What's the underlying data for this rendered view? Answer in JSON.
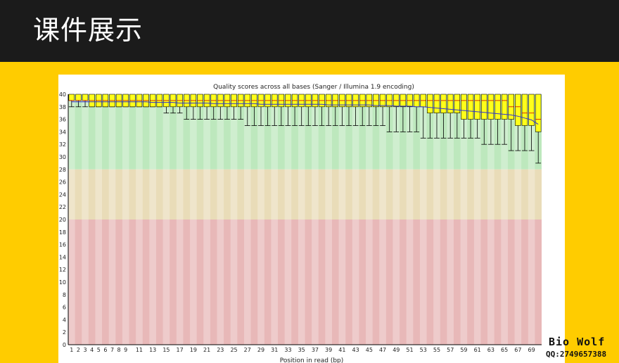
{
  "header": {
    "title": "课件展示"
  },
  "watermark": {
    "name": "Bio Wolf",
    "contact": "QQ:2749657388"
  },
  "colors": {
    "page_background": "#ffcc00",
    "header_background": "#1b1b1b",
    "zone_good": "#bde8bd",
    "zone_warn": "#e9dcb8",
    "zone_bad": "#e8b8b8",
    "box_fill": "#ffff1a",
    "mean_line": "#3333cc"
  },
  "chart_data": {
    "type": "boxplot",
    "title": "Quality scores across all bases (Sanger / Illumina 1.9 encoding)",
    "xlabel": "Position in read (bp)",
    "ylabel": "",
    "ylim": [
      0,
      40
    ],
    "yticks": [
      0,
      2,
      4,
      6,
      8,
      10,
      12,
      14,
      16,
      18,
      20,
      22,
      24,
      26,
      28,
      30,
      32,
      34,
      36,
      38,
      40
    ],
    "xtick_labels": [
      "1",
      "2",
      "3",
      "4",
      "5",
      "6",
      "7",
      "8",
      "9",
      "11",
      "13",
      "15",
      "17",
      "19",
      "21",
      "23",
      "25",
      "27",
      "29",
      "31",
      "33",
      "35",
      "37",
      "39",
      "41",
      "43",
      "45",
      "47",
      "49",
      "51",
      "53",
      "55",
      "57",
      "59",
      "61",
      "63",
      "65",
      "67",
      "69"
    ],
    "zones": [
      {
        "name": "good",
        "from": 28,
        "to": 40
      },
      {
        "name": "warning",
        "from": 20,
        "to": 28
      },
      {
        "name": "poor",
        "from": 0,
        "to": 20
      }
    ],
    "positions": [
      1,
      2,
      3,
      4,
      5,
      6,
      7,
      8,
      9,
      10,
      11,
      12,
      13,
      14,
      15,
      16,
      17,
      18,
      19,
      20,
      21,
      22,
      23,
      24,
      25,
      26,
      27,
      28,
      29,
      30,
      31,
      32,
      33,
      34,
      35,
      36,
      37,
      38,
      39,
      40,
      41,
      42,
      43,
      44,
      45,
      46,
      47,
      48,
      49,
      50,
      51,
      52,
      53,
      54,
      55,
      56,
      57,
      58,
      59,
      60,
      61,
      62,
      63,
      64,
      65,
      66,
      67,
      68,
      69,
      70
    ],
    "upper_quartile": [
      40,
      40,
      40,
      40,
      40,
      40,
      40,
      40,
      40,
      40,
      40,
      40,
      40,
      40,
      40,
      40,
      40,
      40,
      40,
      40,
      40,
      40,
      40,
      40,
      40,
      40,
      40,
      40,
      40,
      40,
      40,
      40,
      40,
      40,
      40,
      40,
      40,
      40,
      40,
      40,
      40,
      40,
      40,
      40,
      40,
      40,
      40,
      40,
      40,
      40,
      40,
      40,
      40,
      40,
      40,
      40,
      40,
      40,
      40,
      40,
      40,
      40,
      40,
      40,
      40,
      40,
      40,
      40,
      40,
      40
    ],
    "median": [
      39,
      39,
      39,
      39,
      39,
      39,
      39,
      39,
      39,
      39,
      39,
      39,
      39,
      39,
      39,
      39,
      39,
      39,
      39,
      39,
      39,
      39,
      39,
      39,
      39,
      39,
      39,
      39,
      39,
      39,
      39,
      39,
      39,
      39,
      39,
      39,
      39,
      39,
      39,
      39,
      39,
      39,
      39,
      39,
      39,
      39,
      39,
      39,
      39,
      39,
      39,
      39,
      39,
      39,
      39,
      39,
      39,
      39,
      39,
      39,
      39,
      39,
      39,
      39,
      39,
      38,
      38,
      37,
      37,
      36
    ],
    "lower_quartile": [
      39,
      39,
      39,
      38,
      38,
      38,
      38,
      38,
      38,
      38,
      38,
      38,
      38,
      38,
      38,
      38,
      38,
      38,
      38,
      38,
      38,
      38,
      38,
      38,
      38,
      38,
      38,
      38,
      38,
      38,
      38,
      38,
      38,
      38,
      38,
      38,
      38,
      38,
      38,
      38,
      38,
      38,
      38,
      38,
      38,
      38,
      38,
      38,
      38,
      38,
      38,
      38,
      38,
      37,
      37,
      37,
      37,
      37,
      36,
      36,
      36,
      36,
      36,
      36,
      36,
      36,
      35,
      35,
      35,
      34
    ],
    "upper_whisker": [
      40,
      40,
      40,
      40,
      40,
      40,
      40,
      40,
      40,
      40,
      40,
      40,
      40,
      40,
      40,
      40,
      40,
      40,
      40,
      40,
      40,
      40,
      40,
      40,
      40,
      40,
      40,
      40,
      40,
      40,
      40,
      40,
      40,
      40,
      40,
      40,
      40,
      40,
      40,
      40,
      40,
      40,
      40,
      40,
      40,
      40,
      40,
      40,
      40,
      40,
      40,
      40,
      40,
      40,
      40,
      40,
      40,
      40,
      40,
      40,
      40,
      40,
      40,
      40,
      40,
      40,
      40,
      40,
      40,
      40
    ],
    "lower_whisker": [
      38,
      38,
      38,
      38,
      38,
      38,
      38,
      38,
      38,
      38,
      38,
      38,
      38,
      38,
      37,
      37,
      37,
      36,
      36,
      36,
      36,
      36,
      36,
      36,
      36,
      36,
      35,
      35,
      35,
      35,
      35,
      35,
      35,
      35,
      35,
      35,
      35,
      35,
      35,
      35,
      35,
      35,
      35,
      35,
      35,
      35,
      35,
      34,
      34,
      34,
      34,
      34,
      33,
      33,
      33,
      33,
      33,
      33,
      33,
      33,
      33,
      32,
      32,
      32,
      32,
      31,
      31,
      31,
      31,
      29
    ],
    "mean": [
      38.8,
      38.8,
      38.8,
      38.8,
      38.8,
      38.8,
      38.8,
      38.8,
      38.8,
      38.8,
      38.8,
      38.8,
      38.7,
      38.7,
      38.7,
      38.7,
      38.6,
      38.6,
      38.6,
      38.6,
      38.6,
      38.5,
      38.5,
      38.5,
      38.5,
      38.5,
      38.5,
      38.5,
      38.4,
      38.4,
      38.4,
      38.4,
      38.4,
      38.4,
      38.4,
      38.4,
      38.4,
      38.4,
      38.3,
      38.3,
      38.3,
      38.3,
      38.3,
      38.3,
      38.3,
      38.2,
      38.2,
      38.2,
      38.1,
      38.1,
      38.1,
      38.0,
      38.0,
      37.9,
      37.8,
      37.7,
      37.6,
      37.5,
      37.4,
      37.3,
      37.2,
      37.1,
      37.0,
      36.9,
      36.8,
      36.7,
      36.5,
      36.2,
      35.9,
      35.2
    ]
  }
}
